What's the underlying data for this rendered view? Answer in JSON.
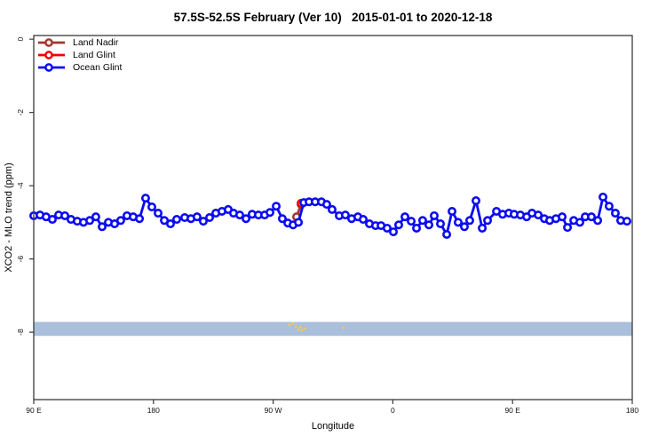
{
  "chart_data": {
    "type": "line",
    "title": "57.5S-52.5S February (Ver 10)   2015-01-01 to 2020-12-18",
    "xlabel": "Longitude",
    "ylabel": "XCO2 - MLO trend (ppm)",
    "x_axis_note": "longitude axis wraps eastward: 90E, 180, 90W, 0, 90E, 180",
    "xlim": [
      90,
      540
    ],
    "ylim": [
      0.1,
      -9.84
    ],
    "grid": false,
    "legend_position": "top-left-inside",
    "x_ticks": [
      {
        "value": 90,
        "label": "90 E"
      },
      {
        "value": 180,
        "label": "180"
      },
      {
        "value": 270,
        "label": "90 W"
      },
      {
        "value": 360,
        "label": "0"
      },
      {
        "value": 450,
        "label": "90 E"
      },
      {
        "value": 540,
        "label": "180"
      }
    ],
    "y_ticks": [
      {
        "value": 0,
        "label": "0"
      },
      {
        "value": -2,
        "label": "-2"
      },
      {
        "value": -4,
        "label": "-4"
      },
      {
        "value": -6,
        "label": "-6"
      },
      {
        "value": -8,
        "label": "-8"
      }
    ],
    "band": {
      "from": -7.72,
      "to": -8.1,
      "color": "#a9bfdb"
    },
    "scatter_markers": {
      "name": "small yellow specks in band",
      "color": "#eec95f",
      "points": [
        [
          282.3,
          -7.8
        ],
        [
          285.0,
          -7.76
        ],
        [
          287.0,
          -7.85
        ],
        [
          289.0,
          -7.93
        ],
        [
          290.3,
          -7.86
        ],
        [
          291.6,
          -7.95
        ],
        [
          293.6,
          -7.9
        ],
        [
          323.0,
          -7.88
        ]
      ]
    },
    "series": [
      {
        "name": "Land Nadir",
        "color": "#a5362e",
        "points": [
          [
            287.6,
            -4.85
          ],
          [
            291.0,
            -4.51
          ]
        ]
      },
      {
        "name": "Land Glint",
        "color": "#f40000",
        "points": [
          [
            291.0,
            -4.48
          ]
        ]
      },
      {
        "name": "Ocean Glint",
        "color": "#0b0bf2",
        "points": [
          [
            90.0,
            -4.82
          ],
          [
            94.7,
            -4.8
          ],
          [
            99.3,
            -4.85
          ],
          [
            104.0,
            -4.92
          ],
          [
            108.7,
            -4.8
          ],
          [
            113.4,
            -4.82
          ],
          [
            118.0,
            -4.92
          ],
          [
            122.7,
            -4.97
          ],
          [
            127.4,
            -5.0
          ],
          [
            132.1,
            -4.95
          ],
          [
            136.7,
            -4.85
          ],
          [
            141.4,
            -5.12
          ],
          [
            146.1,
            -5.0
          ],
          [
            150.8,
            -5.04
          ],
          [
            155.4,
            -4.95
          ],
          [
            160.1,
            -4.82
          ],
          [
            164.8,
            -4.85
          ],
          [
            169.5,
            -4.9
          ],
          [
            174.1,
            -4.34
          ],
          [
            178.8,
            -4.58
          ],
          [
            183.5,
            -4.75
          ],
          [
            188.2,
            -4.95
          ],
          [
            192.8,
            -5.04
          ],
          [
            197.5,
            -4.92
          ],
          [
            203.5,
            -4.87
          ],
          [
            208.2,
            -4.9
          ],
          [
            212.8,
            -4.85
          ],
          [
            217.5,
            -4.97
          ],
          [
            222.2,
            -4.87
          ],
          [
            226.9,
            -4.75
          ],
          [
            231.5,
            -4.7
          ],
          [
            236.2,
            -4.65
          ],
          [
            240.2,
            -4.75
          ],
          [
            244.9,
            -4.8
          ],
          [
            249.6,
            -4.9
          ],
          [
            254.2,
            -4.78
          ],
          [
            258.9,
            -4.8
          ],
          [
            263.6,
            -4.8
          ],
          [
            267.6,
            -4.73
          ],
          [
            272.3,
            -4.56
          ],
          [
            276.9,
            -4.9
          ],
          [
            281.0,
            -5.02
          ],
          [
            285.0,
            -5.07
          ],
          [
            289.0,
            -5.0
          ],
          [
            293.0,
            -4.46
          ],
          [
            297.0,
            -4.44
          ],
          [
            301.6,
            -4.44
          ],
          [
            306.3,
            -4.44
          ],
          [
            310.3,
            -4.51
          ],
          [
            314.3,
            -4.65
          ],
          [
            319.7,
            -4.82
          ],
          [
            324.3,
            -4.8
          ],
          [
            329.0,
            -4.9
          ],
          [
            333.7,
            -4.85
          ],
          [
            337.7,
            -4.92
          ],
          [
            342.4,
            -5.04
          ],
          [
            347.0,
            -5.09
          ],
          [
            351.1,
            -5.09
          ],
          [
            355.7,
            -5.16
          ],
          [
            360.4,
            -5.26
          ],
          [
            364.4,
            -5.07
          ],
          [
            369.1,
            -4.85
          ],
          [
            373.8,
            -4.97
          ],
          [
            377.8,
            -5.16
          ],
          [
            382.4,
            -4.95
          ],
          [
            387.1,
            -5.07
          ],
          [
            391.1,
            -4.82
          ],
          [
            395.8,
            -5.04
          ],
          [
            400.5,
            -5.33
          ],
          [
            404.5,
            -4.7
          ],
          [
            409.1,
            -5.0
          ],
          [
            413.8,
            -5.12
          ],
          [
            417.8,
            -4.95
          ],
          [
            422.5,
            -4.41
          ],
          [
            427.2,
            -5.16
          ],
          [
            431.2,
            -4.95
          ],
          [
            437.9,
            -4.7
          ],
          [
            442.5,
            -4.78
          ],
          [
            447.2,
            -4.75
          ],
          [
            451.2,
            -4.78
          ],
          [
            455.9,
            -4.8
          ],
          [
            460.6,
            -4.85
          ],
          [
            464.6,
            -4.75
          ],
          [
            469.3,
            -4.8
          ],
          [
            473.9,
            -4.9
          ],
          [
            477.9,
            -4.95
          ],
          [
            482.6,
            -4.9
          ],
          [
            487.3,
            -4.85
          ],
          [
            491.3,
            -5.14
          ],
          [
            496.0,
            -4.95
          ],
          [
            500.6,
            -5.0
          ],
          [
            504.6,
            -4.85
          ],
          [
            509.3,
            -4.85
          ],
          [
            514.0,
            -4.95
          ],
          [
            518.0,
            -4.31
          ],
          [
            522.6,
            -4.56
          ],
          [
            527.3,
            -4.75
          ],
          [
            531.3,
            -4.95
          ],
          [
            536.0,
            -4.97
          ]
        ]
      }
    ],
    "legend": [
      "Land Nadir",
      "Land Glint",
      "Ocean Glint"
    ]
  }
}
